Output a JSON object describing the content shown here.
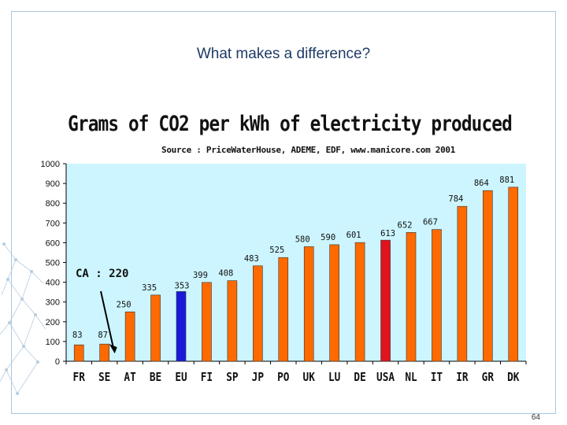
{
  "slide": {
    "title": "What makes a difference?",
    "page_number": "64"
  },
  "chart_data": {
    "type": "bar",
    "title": "Grams of CO2 per kWh of electricity produced",
    "subtitle": "Source : PriceWaterHouse, ADEME, EDF, www.manicore.com 2001",
    "xlabel": "",
    "ylabel": "",
    "ylim": [
      0,
      1000
    ],
    "yticks": [
      0,
      100,
      200,
      300,
      400,
      500,
      600,
      700,
      800,
      900,
      1000
    ],
    "grid": false,
    "categories": [
      "FR",
      "SE",
      "AT",
      "BE",
      "EU",
      "FI",
      "SP",
      "JP",
      "PO",
      "UK",
      "LU",
      "DE",
      "USA",
      "NL",
      "IT",
      "IR",
      "GR",
      "DK"
    ],
    "values": [
      83,
      87,
      250,
      335,
      353,
      399,
      408,
      483,
      525,
      580,
      590,
      601,
      613,
      652,
      667,
      784,
      864,
      881
    ],
    "bar_colors": [
      "#ff6a00",
      "#ff6a00",
      "#ff6a00",
      "#ff6a00",
      "#1a1adb",
      "#ff6a00",
      "#ff6a00",
      "#ff6a00",
      "#ff6a00",
      "#ff6a00",
      "#ff6a00",
      "#ff6a00",
      "#e0131f",
      "#ff6a00",
      "#ff6a00",
      "#ff6a00",
      "#ff6a00",
      "#ff6a00"
    ],
    "label_colors": [
      "#111111",
      "#111111",
      "#111111",
      "#111111",
      "#1a1adb",
      "#111111",
      "#111111",
      "#111111",
      "#111111",
      "#111111",
      "#111111",
      "#111111",
      "#c0141f",
      "#111111",
      "#111111",
      "#111111",
      "#111111",
      "#111111"
    ],
    "plot_background": "#ccf5ff",
    "annotation": {
      "text": "CA : 220",
      "points_to": "SE"
    }
  }
}
